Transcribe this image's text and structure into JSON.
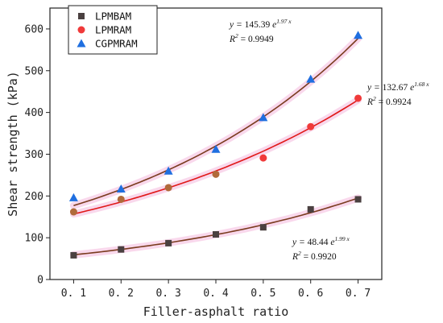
{
  "chart_data": {
    "type": "scatter",
    "xlabel": "Filler-asphalt ratio",
    "ylabel": "Shear strength (kPa)",
    "xlim": [
      0.05,
      0.75
    ],
    "ylim": [
      0,
      650
    ],
    "x_ticks": [
      0.1,
      0.2,
      0.3,
      0.4,
      0.5,
      0.6,
      0.7
    ],
    "x_tick_labels": [
      "0. 1",
      "0. 2",
      "0. 3",
      "0. 4",
      "0. 5",
      "0. 6",
      "0. 7"
    ],
    "y_ticks": [
      0,
      100,
      200,
      300,
      400,
      500,
      600
    ],
    "grid": false,
    "legend_position": "top-left",
    "series": [
      {
        "name": "LPMBAM",
        "marker": "square",
        "color": "#4a4040",
        "fit_color": "#7a3b1e",
        "x": [
          0.1,
          0.2,
          0.3,
          0.4,
          0.5,
          0.6,
          0.7
        ],
        "values": [
          58,
          72,
          87,
          108,
          125,
          168,
          192
        ],
        "fit": {
          "a": 48.44,
          "b": 1.99,
          "a_text": "48.44",
          "b_text": "1.99",
          "r2_text": "0.9920"
        }
      },
      {
        "name": "LPMRAM",
        "marker": "circle",
        "color": "#f03a3a",
        "fit_color": "#e01818",
        "x": [
          0.1,
          0.2,
          0.3,
          0.4,
          0.5,
          0.6,
          0.7
        ],
        "values": [
          162,
          192,
          220,
          252,
          291,
          366,
          434
        ],
        "fit": {
          "a": 132.67,
          "b": 1.68,
          "a_text": "132.67",
          "b_text": "1.68",
          "r2_text": "0.9924"
        }
      },
      {
        "name": "CGPMRAM",
        "marker": "triangle",
        "color": "#1f6fe0",
        "fit_color": "#7a3b1e",
        "x": [
          0.1,
          0.2,
          0.3,
          0.4,
          0.5,
          0.6,
          0.7
        ],
        "values": [
          196,
          217,
          260,
          312,
          388,
          480,
          585
        ],
        "fit": {
          "a": 145.39,
          "b": 1.97,
          "a_text": "145.39",
          "b_text": "1.97",
          "r2_text": "0.9949"
        }
      }
    ],
    "equation_prefix": "y = ",
    "equation_base": "e",
    "equation_exp_suffix": " x",
    "r2_prefix": "R",
    "r2_sup": "2",
    "r2_eq": " = "
  }
}
